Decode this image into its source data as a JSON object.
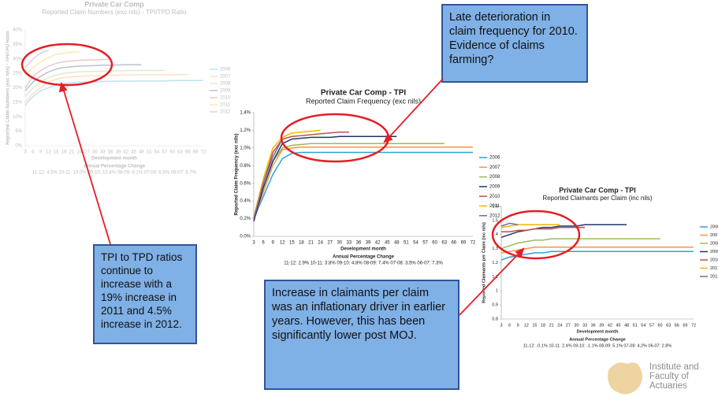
{
  "chart_data": [
    {
      "type": "line",
      "title": "Private Car Comp",
      "subtitle": "Reported Claim Numbers (exc nils) - TPI/TPD Ratio",
      "xlabel": "Development month",
      "ylabel": "Reported Claim Numbers (exc nils) - TPI/TPD Ratio",
      "footer_title": "Annual Percentage Change",
      "footer": "11-12: 4.5% 10-11: 19.0% 09-10: 10.4% 08-09: 9.1% 07-08: 6.5% 06-07: 8.7%",
      "categories": [
        3,
        6,
        9,
        12,
        15,
        18,
        21,
        24,
        27,
        30,
        33,
        36,
        39,
        42,
        45,
        48,
        51,
        54,
        57,
        60,
        63,
        66,
        69,
        72
      ],
      "ylim": [
        0,
        40
      ],
      "yticks": [
        {
          "value": 0,
          "label": "0%"
        },
        {
          "value": 5,
          "label": "5%"
        },
        {
          "value": 10,
          "label": "10%"
        },
        {
          "value": 15,
          "label": "15%"
        },
        {
          "value": 20,
          "label": "20%"
        },
        {
          "value": 25,
          "label": "25%"
        },
        {
          "value": 30,
          "label": "30%"
        },
        {
          "value": 35,
          "label": "35%"
        },
        {
          "value": 40,
          "label": "40%"
        }
      ],
      "legend": "right",
      "faded": true,
      "series": [
        {
          "name": "2006",
          "color": "#2ea3d6",
          "values": [
            14,
            17,
            19,
            20,
            21,
            21.5,
            21.8,
            22,
            22,
            22.1,
            22.2,
            22.2,
            22.3,
            22.3,
            22.3,
            22.4,
            22.4,
            22.4,
            22.4,
            22.5,
            22.5,
            22.5,
            22.5,
            22.5
          ]
        },
        {
          "name": "2007",
          "color": "#f79646",
          "values": [
            15,
            18,
            20,
            22,
            23,
            23.5,
            23.8,
            24,
            24.1,
            24.2,
            24.3,
            24.3,
            24.4,
            24.4,
            24.4,
            24.5,
            24.5,
            24.5,
            24.5,
            24.5,
            24.6,
            24.6,
            null,
            null
          ]
        },
        {
          "name": "2008",
          "color": "#9bbb59",
          "values": [
            17,
            20,
            22,
            23.5,
            24.5,
            25,
            25.3,
            25.5,
            25.6,
            25.7,
            25.8,
            25.8,
            25.9,
            25.9,
            26,
            26,
            26,
            26,
            26,
            null,
            null,
            null,
            null,
            null
          ]
        },
        {
          "name": "2009",
          "color": "#1f3864",
          "values": [
            19,
            22,
            24,
            25.5,
            26.5,
            27,
            27.3,
            27.5,
            27.6,
            27.7,
            27.8,
            27.8,
            27.9,
            28,
            28,
            28,
            null,
            null,
            null,
            null,
            null,
            null,
            null,
            null
          ]
        },
        {
          "name": "2010",
          "color": "#c0504d",
          "values": [
            20,
            24,
            26,
            27.5,
            28.5,
            29,
            29.3,
            29.5,
            29.6,
            29.7,
            29.8,
            29.8,
            null,
            null,
            null,
            null,
            null,
            null,
            null,
            null,
            null,
            null,
            null,
            null
          ]
        },
        {
          "name": "2011",
          "color": "#f2b600",
          "values": [
            24,
            27,
            29,
            30.5,
            31.5,
            32,
            32.3,
            32.5,
            null,
            null,
            null,
            null,
            null,
            null,
            null,
            null,
            null,
            null,
            null,
            null,
            null,
            null,
            null,
            null
          ]
        },
        {
          "name": "2012",
          "color": "#8064a2",
          "values": [
            27,
            30,
            32,
            33,
            null,
            null,
            null,
            null,
            null,
            null,
            null,
            null,
            null,
            null,
            null,
            null,
            null,
            null,
            null,
            null,
            null,
            null,
            null,
            null
          ]
        }
      ]
    },
    {
      "type": "line",
      "title": "Private Car Comp - TPI",
      "subtitle": "Reported Claim Frequency (exc nils)",
      "xlabel": "Development month",
      "ylabel": "Reported Claim Frequency (exc nils)",
      "footer_title": "Annual Percentage Change",
      "footer": "11-12: 2.9% 10-11: 3.8% 09-10: 4.8% 08-09: 7.4% 07-08: 3.5% 06-07: 7.3%",
      "categories": [
        3,
        6,
        9,
        12,
        15,
        18,
        21,
        24,
        27,
        30,
        33,
        36,
        39,
        42,
        45,
        48,
        51,
        54,
        57,
        60,
        63,
        66,
        69,
        72
      ],
      "ylim": [
        0,
        1.4
      ],
      "yticks": [
        {
          "value": 0,
          "label": "0.0%"
        },
        {
          "value": 0.2,
          "label": "0.2%"
        },
        {
          "value": 0.4,
          "label": "0.4%"
        },
        {
          "value": 0.6,
          "label": "0.6%"
        },
        {
          "value": 0.8,
          "label": "0.8%"
        },
        {
          "value": 1.0,
          "label": "1.0%"
        },
        {
          "value": 1.2,
          "label": "1.2%"
        },
        {
          "value": 1.4,
          "label": "1.4%"
        }
      ],
      "legend": "right",
      "faded": false,
      "series": [
        {
          "name": "2006",
          "color": "#2ea3d6",
          "values": [
            0.2,
            0.45,
            0.7,
            0.88,
            0.94,
            0.95,
            0.95,
            0.95,
            0.95,
            0.95,
            0.95,
            0.95,
            0.95,
            0.95,
            0.95,
            0.95,
            0.95,
            0.95,
            0.95,
            0.95,
            0.95,
            0.95,
            0.95,
            0.95
          ]
        },
        {
          "name": "2007",
          "color": "#f79646",
          "values": [
            0.18,
            0.5,
            0.8,
            0.98,
            1.0,
            1.01,
            1.01,
            1.01,
            1.01,
            1.01,
            1.01,
            1.01,
            1.01,
            1.01,
            1.01,
            1.01,
            1.01,
            1.01,
            1.01,
            1.01,
            1.01,
            1.01,
            1.01,
            1.01
          ]
        },
        {
          "name": "2008",
          "color": "#9bbb59",
          "values": [
            0.2,
            0.55,
            0.85,
            1.0,
            1.03,
            1.04,
            1.05,
            1.05,
            1.05,
            1.05,
            1.05,
            1.05,
            1.05,
            1.05,
            1.05,
            1.05,
            1.05,
            1.05,
            1.05,
            1.05,
            1.05,
            null,
            null,
            null
          ]
        },
        {
          "name": "2009",
          "color": "#1f3864",
          "values": [
            0.17,
            0.55,
            0.85,
            1.05,
            1.1,
            1.11,
            1.12,
            1.12,
            1.12,
            1.13,
            1.13,
            1.13,
            1.13,
            1.13,
            1.13,
            1.13,
            null,
            null,
            null,
            null,
            null,
            null,
            null,
            null
          ]
        },
        {
          "name": "2010",
          "color": "#c0504d",
          "values": [
            0.2,
            0.6,
            0.95,
            1.1,
            1.13,
            1.14,
            1.15,
            1.16,
            1.17,
            1.18,
            1.18,
            null,
            null,
            null,
            null,
            null,
            null,
            null,
            null,
            null,
            null,
            null,
            null,
            null
          ]
        },
        {
          "name": "2011",
          "color": "#f2b600",
          "values": [
            0.22,
            0.65,
            1.0,
            1.12,
            1.17,
            1.18,
            1.19,
            1.2,
            null,
            null,
            null,
            null,
            null,
            null,
            null,
            null,
            null,
            null,
            null,
            null,
            null,
            null,
            null,
            null
          ]
        },
        {
          "name": "2012",
          "color": "#8064a2",
          "values": [
            0.2,
            0.6,
            0.9,
            1.1,
            null,
            null,
            null,
            null,
            null,
            null,
            null,
            null,
            null,
            null,
            null,
            null,
            null,
            null,
            null,
            null,
            null,
            null,
            null,
            null
          ]
        }
      ]
    },
    {
      "type": "line",
      "title": "Private Car Comp - TPI",
      "subtitle": "Reported Claimants per Claim (inc nils)",
      "xlabel": "Development month",
      "ylabel": "Reported Claimants per Claim (inc nils)",
      "footer_title": "Annual Percentage Change",
      "footer": "11-12: -0.1% 10-11: 2.4% 09-10: -1.1% 08-09: 5.1% 07-08: 4.2% 06-07: 2.8%",
      "categories": [
        3,
        6,
        9,
        12,
        15,
        18,
        21,
        24,
        27,
        30,
        33,
        36,
        39,
        42,
        45,
        48,
        51,
        54,
        57,
        60,
        63,
        66,
        69,
        72
      ],
      "ylim": [
        0.8,
        1.6
      ],
      "yticks": [
        0.8,
        0.9,
        1,
        1.1,
        1.2,
        1.3,
        1.4,
        1.5,
        1.6
      ],
      "legend": "right",
      "faded": false,
      "series": [
        {
          "name": "2006",
          "color": "#2ea3d6",
          "values": [
            1.22,
            1.24,
            1.25,
            1.26,
            1.27,
            1.27,
            1.28,
            1.28,
            1.28,
            1.28,
            1.28,
            1.28,
            1.28,
            1.28,
            1.28,
            1.28,
            1.28,
            1.28,
            1.28,
            1.28,
            1.28,
            1.28,
            1.28,
            1.28
          ]
        },
        {
          "name": "2007",
          "color": "#f79646",
          "values": [
            1.27,
            1.28,
            1.29,
            1.3,
            1.31,
            1.31,
            1.31,
            1.31,
            1.31,
            1.31,
            1.31,
            1.31,
            1.31,
            1.31,
            1.31,
            1.31,
            1.31,
            1.31,
            1.31,
            1.31,
            1.31,
            1.31,
            1.31,
            1.31
          ]
        },
        {
          "name": "2008",
          "color": "#9bbb59",
          "values": [
            1.3,
            1.32,
            1.34,
            1.35,
            1.36,
            1.36,
            1.37,
            1.37,
            1.37,
            1.37,
            1.37,
            1.37,
            1.37,
            1.37,
            1.37,
            1.37,
            1.37,
            1.37,
            1.37,
            1.37,
            null,
            null,
            null,
            null
          ]
        },
        {
          "name": "2009",
          "color": "#1f3864",
          "values": [
            1.38,
            1.4,
            1.42,
            1.43,
            1.44,
            1.45,
            1.45,
            1.46,
            1.46,
            1.46,
            1.47,
            1.47,
            1.47,
            1.47,
            1.47,
            1.47,
            null,
            null,
            null,
            null,
            null,
            null,
            null,
            null
          ]
        },
        {
          "name": "2010",
          "color": "#c0504d",
          "values": [
            1.42,
            1.42,
            1.43,
            1.43,
            1.44,
            1.44,
            1.44,
            1.45,
            1.45,
            1.45,
            1.45,
            null,
            null,
            null,
            null,
            null,
            null,
            null,
            null,
            null,
            null,
            null,
            null,
            null
          ]
        },
        {
          "name": "2011",
          "color": "#f2b600",
          "values": [
            1.45,
            1.46,
            1.47,
            1.47,
            1.47,
            1.47,
            1.47,
            1.47,
            null,
            null,
            null,
            null,
            null,
            null,
            null,
            null,
            null,
            null,
            null,
            null,
            null,
            null,
            null,
            null
          ]
        },
        {
          "name": "2012",
          "color": "#8064a2",
          "values": [
            1.46,
            1.48,
            1.47,
            null,
            null,
            null,
            null,
            null,
            null,
            null,
            null,
            null,
            null,
            null,
            null,
            null,
            null,
            null,
            null,
            null,
            null,
            null,
            null,
            null
          ]
        }
      ]
    }
  ],
  "callouts": [
    {
      "text": "Late deterioration in claim frequency for 2010. Evidence of claims farming?"
    },
    {
      "text": "TPI to TPD ratios continue to increase with a 19% increase in 2011 and 4.5% increase in 2012."
    },
    {
      "text": "Increase in claimants per claim was an inflationary driver in earlier years. However, this has been significantly lower post MOJ."
    }
  ],
  "logo": "Institute and Faculty of Actuaries"
}
